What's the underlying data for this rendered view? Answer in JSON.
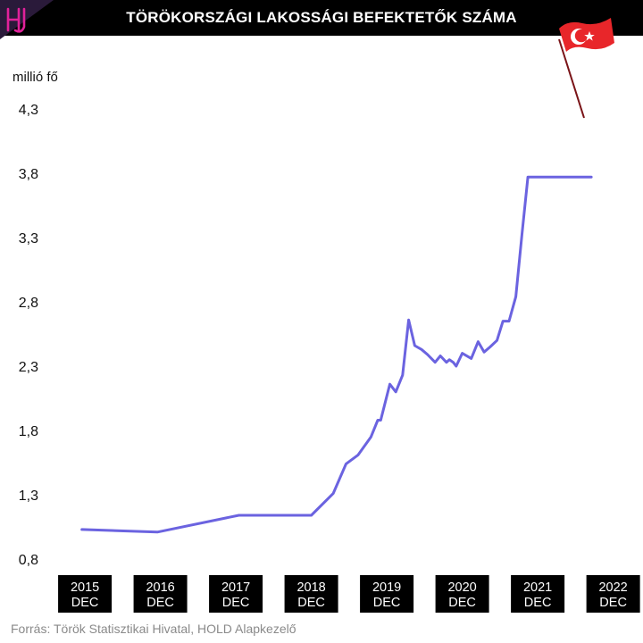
{
  "header": {
    "title": "TÖRÖKORSZÁGI LAKOSSÁGI BEFEKTETŐK SZÁMA",
    "logo_icon": "hold-logo-icon",
    "flag_icon": "turkey-flag-icon",
    "background": "#000000",
    "logo_color": "#e0219a"
  },
  "footer": {
    "source": "Forrás: Török Statisztikai Hivatal, HOLD Alapkezelő"
  },
  "chart_data": {
    "type": "line",
    "title": "TÖRÖKORSZÁGI LAKOSSÁGI BEFEKTETŐK SZÁMA",
    "ylabel": "millió fő",
    "xlabel": "",
    "ylim": [
      0.8,
      4.3
    ],
    "yticks": [
      "4,3",
      "3,8",
      "3,3",
      "2,8",
      "2,3",
      "1,8",
      "1,3",
      "0,8"
    ],
    "ytick_values": [
      4.3,
      3.8,
      3.3,
      2.8,
      2.3,
      1.8,
      1.3,
      0.8
    ],
    "xlim": [
      2015.9,
      2023.0
    ],
    "xticks": [
      {
        "value": 2015.96,
        "line1": "2015",
        "line2": "DEC"
      },
      {
        "value": 2016.96,
        "line1": "2016",
        "line2": "DEC"
      },
      {
        "value": 2017.96,
        "line1": "2017",
        "line2": "DEC"
      },
      {
        "value": 2018.96,
        "line1": "2018",
        "line2": "DEC"
      },
      {
        "value": 2019.96,
        "line1": "2019",
        "line2": "DEC"
      },
      {
        "value": 2020.96,
        "line1": "2020",
        "line2": "DEC"
      },
      {
        "value": 2021.96,
        "line1": "2021",
        "line2": "DEC"
      },
      {
        "value": 2022.96,
        "line1": "2022",
        "line2": "DEC"
      }
    ],
    "grid": false,
    "line_color": "#6b63e0",
    "series": [
      {
        "x": [
          2015.92,
          2016.92,
          2018.0,
          2018.96,
          2019.25,
          2019.42,
          2019.58,
          2019.75,
          2019.84,
          2019.88,
          2020.0,
          2020.08,
          2020.17,
          2020.25,
          2020.33,
          2020.42,
          2020.5,
          2020.6,
          2020.67,
          2020.75,
          2020.79,
          2020.84,
          2020.88,
          2020.96,
          2021.08,
          2021.17,
          2021.25,
          2021.33,
          2021.42,
          2021.5,
          2021.58,
          2021.67,
          2021.75,
          2021.83,
          2021.92,
          2022.0,
          2022.08,
          2022.17,
          2022.25,
          2022.33,
          2022.42,
          2022.5,
          2022.58,
          2022.67
        ],
        "y": [
          1.03,
          1.01,
          1.14,
          1.14,
          1.31,
          1.54,
          1.61,
          1.75,
          1.88,
          1.88,
          2.16,
          2.1,
          2.23,
          2.66,
          2.46,
          2.43,
          2.39,
          2.33,
          2.38,
          2.33,
          2.35,
          2.33,
          2.3,
          2.4,
          2.36,
          2.49,
          2.41,
          2.45,
          2.5,
          2.65,
          2.65,
          2.84,
          3.32,
          3.77,
          3.77,
          3.77,
          3.77,
          3.77,
          3.77,
          3.77,
          3.77,
          3.77,
          3.77,
          3.77
        ]
      }
    ]
  }
}
